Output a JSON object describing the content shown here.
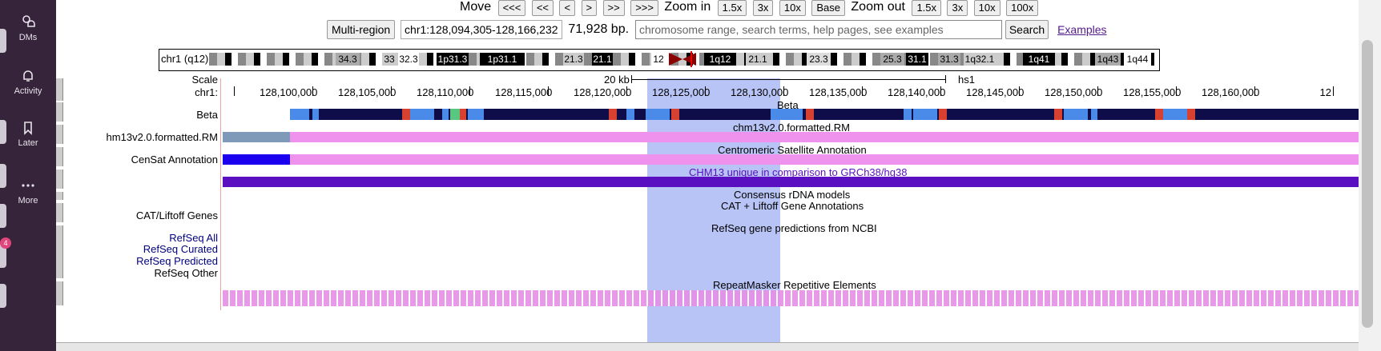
{
  "sidebar": {
    "items": [
      {
        "label": "DMs",
        "icon": "dm-icon"
      },
      {
        "label": "Activity",
        "icon": "bell-icon"
      },
      {
        "label": "Later",
        "icon": "bookmark-icon"
      },
      {
        "label": "More",
        "icon": "more-icon"
      }
    ],
    "badge": "4"
  },
  "nav": {
    "move_label": "Move",
    "move_buttons": [
      "<<<",
      "<<",
      "<",
      ">",
      ">>",
      ">>>"
    ],
    "zoom_in_label": "Zoom in",
    "zoom_in_buttons": [
      "1.5x",
      "3x",
      "10x",
      "Base"
    ],
    "zoom_out_label": "Zoom out",
    "zoom_out_buttons": [
      "1.5x",
      "3x",
      "10x",
      "100x"
    ]
  },
  "position": {
    "multi_region": "Multi-region",
    "range": "chr1:128,094,305-128,166,232",
    "size": "71,928 bp.",
    "search_placeholder": "chromosome range, search terms, help pages, see examples",
    "search_button": "Search",
    "examples_link": "Examples"
  },
  "ideogram": {
    "label": "chr1 (q12)",
    "bands": [
      "34.3",
      "33",
      "32.3",
      "1p31.3",
      "1p31.1",
      "21.3",
      "21.1",
      "12",
      "1q12",
      "21.1",
      "23.3",
      "25.3",
      "31.1",
      "31.3",
      "1q32.1",
      "1q41",
      "1q43",
      "1q44"
    ]
  },
  "ruler": {
    "scale_label": "Scale",
    "chr_label": "chr1:",
    "scale_text": "20 kb",
    "assembly": "hs1",
    "ticks": [
      "128,100,000",
      "128,105,000",
      "128,110,000",
      "128,115,000",
      "128,120,000",
      "128,125,000",
      "128,130,000",
      "128,135,000",
      "128,140,000",
      "128,145,000",
      "128,150,000",
      "128,155,000",
      "128,160,000",
      "12"
    ]
  },
  "tracks": {
    "beta_label": "Beta",
    "beta_center": "Beta",
    "rm_label": "hm13v2.0.formatted.RM",
    "rm_center": "chm13v2.0.formatted.RM",
    "censat_label": "CenSat Annotation",
    "censat_center": "Centromeric Satellite Annotation",
    "unique_center": "CHM13 unique in comparison to GRCh38/hg38",
    "rdna_center": "Consensus rDNA models",
    "cat_label": "CAT/Liftoff Genes",
    "cat_center": "CAT + Liftoff Gene Annotations",
    "refseq_center": "RefSeq gene predictions from NCBI",
    "refseq_all": "RefSeq All",
    "refseq_curated": "RefSeq Curated",
    "refseq_predicted": "RefSeq Predicted",
    "refseq_other": "RefSeq Other",
    "repeat_center": "RepeatMasker Repetitive Elements"
  },
  "colors": {
    "highlight": "#b8c4f5",
    "pink": "#ee92ee",
    "purple": "#5a0fc0",
    "censat_blue": "#1a00ee",
    "steel": "#7e9ab8",
    "beta_dark": "#0f0c4a",
    "beta_light": "#4a8ae8"
  }
}
